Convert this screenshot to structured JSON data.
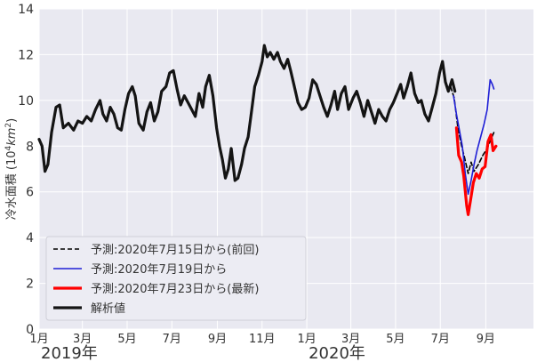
{
  "chart_data": {
    "type": "line",
    "ylabel_main": "冷水面積 (10",
    "ylabel_sup1": "4",
    "ylabel_mid": "km",
    "ylabel_sup2": "2",
    "ylabel_end": ")",
    "ylim": [
      0,
      14
    ],
    "yticks": [
      "0",
      "2",
      "4",
      "6",
      "8",
      "10",
      "12",
      "14"
    ],
    "xlim": [
      "2019-01-01",
      "2020-11-05"
    ],
    "xticks": [
      {
        "date": "2019-01-01",
        "label": "1月"
      },
      {
        "date": "2019-03-01",
        "label": "3月"
      },
      {
        "date": "2019-05-01",
        "label": "5月"
      },
      {
        "date": "2019-07-01",
        "label": "7月"
      },
      {
        "date": "2019-09-01",
        "label": "9月"
      },
      {
        "date": "2019-11-01",
        "label": "11月"
      },
      {
        "date": "2020-01-01",
        "label": "1月"
      },
      {
        "date": "2020-03-01",
        "label": "3月"
      },
      {
        "date": "2020-05-01",
        "label": "5月"
      },
      {
        "date": "2020-07-01",
        "label": "7月"
      },
      {
        "date": "2020-09-01",
        "label": "9月"
      }
    ],
    "year_labels": [
      {
        "date": "2019-01-01",
        "label": "2019年"
      },
      {
        "date": "2020-01-01",
        "label": "2020年"
      }
    ],
    "grid": true,
    "legend_position": "bottom-left",
    "series": [
      {
        "name": "予測:2020年7月15日から(前回)",
        "color": "#000000",
        "width": 1.6,
        "dash": "5,3",
        "points": [
          [
            "2020-07-15",
            10.6
          ],
          [
            "2020-07-20",
            10.1
          ],
          [
            "2020-07-25",
            8.8
          ],
          [
            "2020-07-30",
            8.0
          ],
          [
            "2020-08-03",
            7.5
          ],
          [
            "2020-08-08",
            6.8
          ],
          [
            "2020-08-12",
            7.3
          ],
          [
            "2020-08-16",
            6.9
          ],
          [
            "2020-08-22",
            7.2
          ],
          [
            "2020-08-28",
            7.6
          ],
          [
            "2020-09-03",
            7.9
          ],
          [
            "2020-09-08",
            8.3
          ],
          [
            "2020-09-12",
            8.6
          ]
        ]
      },
      {
        "name": "予測:2020年7月19日から",
        "color": "#1f1fd6",
        "width": 1.6,
        "dash": "",
        "points": [
          [
            "2020-07-19",
            10.2
          ],
          [
            "2020-07-23",
            9.4
          ],
          [
            "2020-07-27",
            8.7
          ],
          [
            "2020-07-31",
            8.0
          ],
          [
            "2020-08-04",
            6.8
          ],
          [
            "2020-08-08",
            5.9
          ],
          [
            "2020-08-12",
            6.5
          ],
          [
            "2020-08-16",
            7.2
          ],
          [
            "2020-08-20",
            7.8
          ],
          [
            "2020-08-25",
            8.4
          ],
          [
            "2020-08-30",
            9.0
          ],
          [
            "2020-09-03",
            9.6
          ],
          [
            "2020-09-07",
            10.9
          ],
          [
            "2020-09-10",
            10.7
          ],
          [
            "2020-09-12",
            10.5
          ]
        ]
      },
      {
        "name": "予測:2020年7月23日から(最新)",
        "color": "#ff0000",
        "width": 3.2,
        "dash": "",
        "points": [
          [
            "2020-07-23",
            8.8
          ],
          [
            "2020-07-26",
            7.6
          ],
          [
            "2020-07-30",
            7.3
          ],
          [
            "2020-08-02",
            6.7
          ],
          [
            "2020-08-06",
            5.4
          ],
          [
            "2020-08-08",
            5.0
          ],
          [
            "2020-08-11",
            5.6
          ],
          [
            "2020-08-15",
            6.4
          ],
          [
            "2020-08-19",
            6.8
          ],
          [
            "2020-08-23",
            6.6
          ],
          [
            "2020-08-27",
            7.0
          ],
          [
            "2020-08-31",
            7.1
          ],
          [
            "2020-09-04",
            8.2
          ],
          [
            "2020-09-08",
            8.5
          ],
          [
            "2020-09-11",
            7.8
          ],
          [
            "2020-09-15",
            8.0
          ]
        ]
      },
      {
        "name": "解析値",
        "color": "#141414",
        "width": 3.2,
        "dash": "",
        "points": [
          [
            "2019-01-01",
            8.3
          ],
          [
            "2019-01-05",
            8.0
          ],
          [
            "2019-01-09",
            6.9
          ],
          [
            "2019-01-13",
            7.2
          ],
          [
            "2019-01-18",
            8.6
          ],
          [
            "2019-01-24",
            9.7
          ],
          [
            "2019-01-29",
            9.8
          ],
          [
            "2019-02-03",
            8.8
          ],
          [
            "2019-02-10",
            9.0
          ],
          [
            "2019-02-17",
            8.7
          ],
          [
            "2019-02-23",
            9.1
          ],
          [
            "2019-03-01",
            9.0
          ],
          [
            "2019-03-07",
            9.3
          ],
          [
            "2019-03-13",
            9.1
          ],
          [
            "2019-03-19",
            9.6
          ],
          [
            "2019-03-25",
            10.0
          ],
          [
            "2019-03-29",
            9.4
          ],
          [
            "2019-04-03",
            9.1
          ],
          [
            "2019-04-08",
            9.7
          ],
          [
            "2019-04-13",
            9.4
          ],
          [
            "2019-04-18",
            8.8
          ],
          [
            "2019-04-23",
            8.7
          ],
          [
            "2019-04-28",
            9.6
          ],
          [
            "2019-05-03",
            10.3
          ],
          [
            "2019-05-08",
            10.6
          ],
          [
            "2019-05-12",
            10.2
          ],
          [
            "2019-05-17",
            9.0
          ],
          [
            "2019-05-23",
            8.7
          ],
          [
            "2019-05-28",
            9.5
          ],
          [
            "2019-06-02",
            9.9
          ],
          [
            "2019-06-07",
            9.1
          ],
          [
            "2019-06-12",
            9.5
          ],
          [
            "2019-06-17",
            10.4
          ],
          [
            "2019-06-23",
            10.6
          ],
          [
            "2019-06-28",
            11.2
          ],
          [
            "2019-07-03",
            11.3
          ],
          [
            "2019-07-08",
            10.5
          ],
          [
            "2019-07-13",
            9.8
          ],
          [
            "2019-07-18",
            10.2
          ],
          [
            "2019-07-23",
            9.9
          ],
          [
            "2019-07-28",
            9.6
          ],
          [
            "2019-08-02",
            9.3
          ],
          [
            "2019-08-07",
            10.3
          ],
          [
            "2019-08-12",
            9.7
          ],
          [
            "2019-08-16",
            10.6
          ],
          [
            "2019-08-21",
            11.1
          ],
          [
            "2019-08-26",
            10.2
          ],
          [
            "2019-08-31",
            8.8
          ],
          [
            "2019-09-04",
            8.0
          ],
          [
            "2019-09-08",
            7.4
          ],
          [
            "2019-09-12",
            6.6
          ],
          [
            "2019-09-16",
            7.0
          ],
          [
            "2019-09-20",
            7.9
          ],
          [
            "2019-09-25",
            6.5
          ],
          [
            "2019-09-29",
            6.6
          ],
          [
            "2019-10-04",
            7.2
          ],
          [
            "2019-10-08",
            7.9
          ],
          [
            "2019-10-13",
            8.4
          ],
          [
            "2019-10-18",
            9.6
          ],
          [
            "2019-10-22",
            10.6
          ],
          [
            "2019-10-27",
            11.1
          ],
          [
            "2019-11-01",
            11.7
          ],
          [
            "2019-11-04",
            12.4
          ],
          [
            "2019-11-08",
            11.9
          ],
          [
            "2019-11-12",
            12.1
          ],
          [
            "2019-11-17",
            11.8
          ],
          [
            "2019-11-22",
            12.1
          ],
          [
            "2019-11-26",
            11.7
          ],
          [
            "2019-12-01",
            11.4
          ],
          [
            "2019-12-06",
            11.8
          ],
          [
            "2019-12-10",
            11.3
          ],
          [
            "2019-12-15",
            10.6
          ],
          [
            "2019-12-20",
            9.9
          ],
          [
            "2019-12-25",
            9.6
          ],
          [
            "2019-12-30",
            9.7
          ],
          [
            "2020-01-04",
            10.1
          ],
          [
            "2020-01-09",
            10.9
          ],
          [
            "2020-01-14",
            10.7
          ],
          [
            "2020-01-19",
            10.2
          ],
          [
            "2020-01-24",
            9.7
          ],
          [
            "2020-01-29",
            9.3
          ],
          [
            "2020-02-03",
            9.8
          ],
          [
            "2020-02-08",
            10.4
          ],
          [
            "2020-02-12",
            9.6
          ],
          [
            "2020-02-17",
            10.3
          ],
          [
            "2020-02-22",
            10.6
          ],
          [
            "2020-02-27",
            9.6
          ],
          [
            "2020-03-04",
            10.1
          ],
          [
            "2020-03-09",
            10.4
          ],
          [
            "2020-03-14",
            9.9
          ],
          [
            "2020-03-19",
            9.3
          ],
          [
            "2020-03-24",
            10.0
          ],
          [
            "2020-03-29",
            9.5
          ],
          [
            "2020-04-03",
            9.0
          ],
          [
            "2020-04-08",
            9.6
          ],
          [
            "2020-04-13",
            9.3
          ],
          [
            "2020-04-18",
            9.1
          ],
          [
            "2020-04-23",
            9.6
          ],
          [
            "2020-04-28",
            9.9
          ],
          [
            "2020-05-03",
            10.3
          ],
          [
            "2020-05-08",
            10.7
          ],
          [
            "2020-05-12",
            10.1
          ],
          [
            "2020-05-17",
            10.6
          ],
          [
            "2020-05-22",
            11.2
          ],
          [
            "2020-05-27",
            10.3
          ],
          [
            "2020-06-01",
            9.9
          ],
          [
            "2020-06-05",
            10.0
          ],
          [
            "2020-06-10",
            9.4
          ],
          [
            "2020-06-15",
            9.1
          ],
          [
            "2020-06-20",
            9.7
          ],
          [
            "2020-06-25",
            10.3
          ],
          [
            "2020-06-30",
            11.2
          ],
          [
            "2020-07-04",
            11.7
          ],
          [
            "2020-07-08",
            10.8
          ],
          [
            "2020-07-12",
            10.4
          ],
          [
            "2020-07-17",
            10.9
          ],
          [
            "2020-07-21",
            10.4
          ]
        ]
      }
    ]
  }
}
